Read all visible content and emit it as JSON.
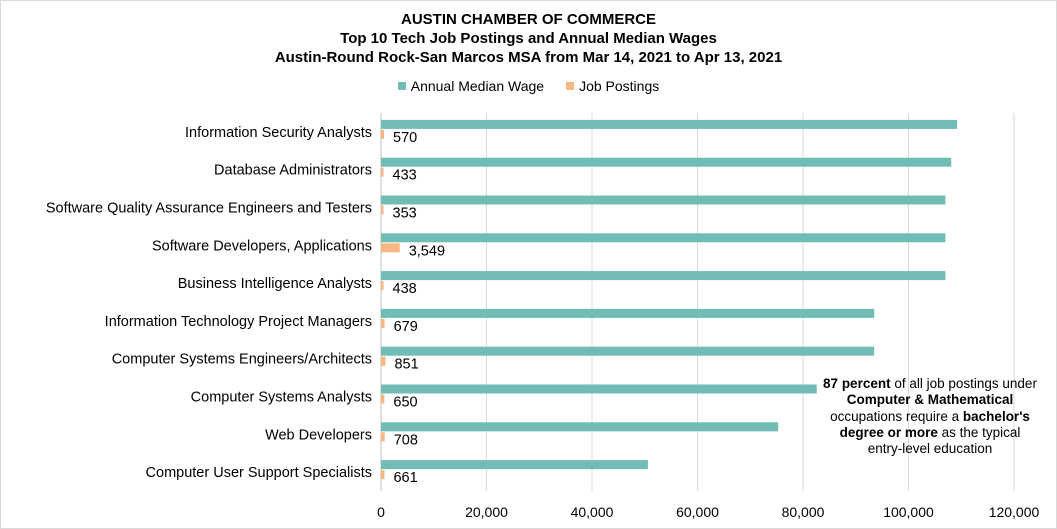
{
  "chart_data": {
    "type": "bar",
    "orientation": "horizontal",
    "title": "AUSTIN CHAMBER OF COMMERCE",
    "subtitle_lines": [
      "Top 10 Tech Job Postings and Annual Median Wages",
      "Austin-Round Rock-San Marcos MSA from Mar 14, 2021 to Apr 13, 2021"
    ],
    "categories": [
      "Information Security Analysts",
      "Database Administrators",
      "Software Quality Assurance Engineers and Testers",
      "Software Developers, Applications",
      "Business Intelligence Analysts",
      "Information Technology Project Managers",
      "Computer Systems Engineers/Architects",
      "Computer Systems Analysts",
      "Web Developers",
      "Computer User Support Specialists"
    ],
    "series": [
      {
        "name": "Annual Median Wage",
        "color": "#72bcb6",
        "values": [
          109200,
          108100,
          107000,
          107000,
          107000,
          93500,
          93500,
          82600,
          75300,
          50600
        ]
      },
      {
        "name": "Job Postings",
        "color": "#f6b783",
        "values": [
          570,
          433,
          353,
          3549,
          438,
          679,
          851,
          650,
          708,
          661
        ],
        "labels": [
          "570",
          "433",
          "353",
          "3,549",
          "438",
          "679",
          "851",
          "650",
          "708",
          "661"
        ]
      }
    ],
    "xlim": [
      0,
      120000
    ],
    "xticks": [
      0,
      20000,
      40000,
      60000,
      80000,
      100000,
      120000
    ],
    "xtick_labels": [
      "0",
      "20,000",
      "40,000",
      "60,000",
      "80,000",
      "100,000",
      "120,000"
    ],
    "grid": "vertical",
    "legend_position": "top"
  },
  "note": {
    "segments": [
      {
        "text": "87 percent",
        "bold": true
      },
      {
        "text": " of all job postings under ",
        "bold": false
      },
      {
        "text": "Computer & Mathematical",
        "bold": true
      },
      {
        "text": " occupations require a ",
        "bold": false
      },
      {
        "text": "bachelor's degree or more",
        "bold": true
      },
      {
        "text": " as the typical entry-level education",
        "bold": false
      }
    ]
  }
}
